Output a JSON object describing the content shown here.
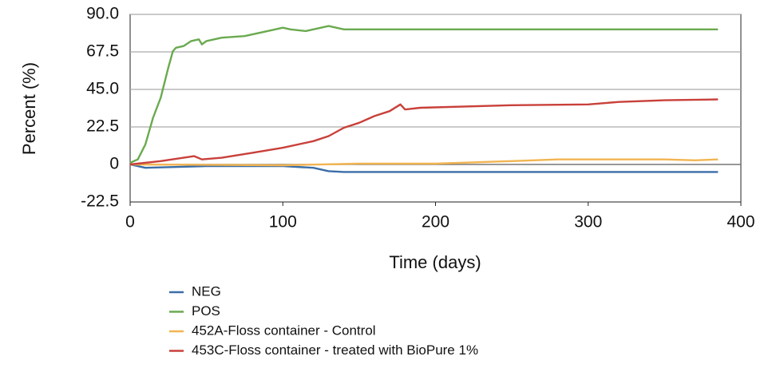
{
  "chart_data": {
    "type": "line",
    "x_label": "Time (days)",
    "y_label": "Percent (%)",
    "xlim": [
      0,
      400
    ],
    "xticks": [
      0,
      100,
      200,
      300,
      400
    ],
    "ylim": [
      -22.5,
      90
    ],
    "yticks": [
      {
        "value": 90,
        "label": "90.0"
      },
      67.5,
      {
        "value": 45,
        "label": "45.0"
      },
      22.5,
      0,
      -22.5
    ],
    "grid": true,
    "legend": "bottom",
    "series": [
      {
        "name": "NEG",
        "color": "#3b6ea8",
        "x": [
          0,
          10,
          50,
          100,
          120,
          130,
          140,
          200,
          300,
          385
        ],
        "values": [
          0,
          -2,
          -1,
          -1,
          -2,
          -4,
          -4.5,
          -4.5,
          -4.5,
          -4.5
        ]
      },
      {
        "name": "POS",
        "color": "#6aaa4f",
        "x": [
          0,
          5,
          10,
          15,
          20,
          25,
          28,
          30,
          35,
          40,
          45,
          47,
          50,
          60,
          75,
          90,
          100,
          105,
          115,
          125,
          130,
          140,
          200,
          300,
          385
        ],
        "values": [
          1,
          3,
          12,
          28,
          40,
          58,
          68,
          70,
          71,
          74,
          75,
          72,
          74,
          76,
          77,
          80,
          82,
          81,
          80,
          82,
          83,
          81,
          81,
          81,
          81
        ]
      },
      {
        "name": "452A-Floss container - Control",
        "color": "#f2b552",
        "x": [
          0,
          100,
          150,
          200,
          250,
          280,
          350,
          370,
          385
        ],
        "values": [
          0,
          -0.5,
          0.5,
          0.5,
          2,
          3,
          3,
          2.5,
          3
        ]
      },
      {
        "name": "453C-Floss container - treated with BioPure 1%",
        "color": "#c9403a",
        "x": [
          0,
          20,
          35,
          42,
          47,
          60,
          80,
          100,
          120,
          130,
          140,
          150,
          155,
          160,
          170,
          177,
          180,
          190,
          250,
          300,
          320,
          350,
          385
        ],
        "values": [
          0,
          2,
          4,
          5,
          3,
          4,
          7,
          10,
          14,
          17,
          22,
          25,
          27,
          29,
          32,
          36,
          33,
          34,
          35.5,
          36,
          37.5,
          38.5,
          39
        ]
      }
    ]
  }
}
